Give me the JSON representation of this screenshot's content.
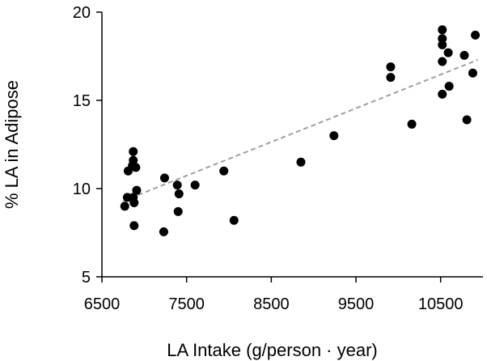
{
  "chart_data": {
    "type": "scatter",
    "title": "",
    "xlabel": "LA Intake (g/person · year)",
    "ylabel": "% LA in Adipose",
    "xlim": [
      6500,
      11000
    ],
    "ylim": [
      5,
      20
    ],
    "x_ticks": [
      6500,
      7500,
      8500,
      9500,
      10500
    ],
    "y_ticks": [
      5,
      10,
      15,
      20
    ],
    "x_tick_labels": [
      "6500",
      "7500",
      "8500",
      "9500",
      "10500"
    ],
    "y_tick_labels": [
      "5",
      "10",
      "15",
      "20"
    ],
    "grid": false,
    "legend": "none",
    "marker_color": "#000000",
    "trendline": {
      "style": "dashed",
      "color": "#a0a0a0",
      "from": [
        6750,
        9.3
      ],
      "to": [
        10940,
        17.3
      ]
    },
    "points": [
      {
        "x": 6770,
        "y": 9.0
      },
      {
        "x": 6800,
        "y": 9.5
      },
      {
        "x": 6810,
        "y": 11.0
      },
      {
        "x": 6860,
        "y": 11.3
      },
      {
        "x": 6870,
        "y": 12.1
      },
      {
        "x": 6870,
        "y": 11.6
      },
      {
        "x": 6870,
        "y": 9.5
      },
      {
        "x": 6880,
        "y": 7.9
      },
      {
        "x": 6880,
        "y": 9.2
      },
      {
        "x": 6900,
        "y": 11.2
      },
      {
        "x": 6910,
        "y": 9.9
      },
      {
        "x": 7230,
        "y": 7.55
      },
      {
        "x": 7240,
        "y": 10.6
      },
      {
        "x": 7390,
        "y": 10.2
      },
      {
        "x": 7400,
        "y": 8.7
      },
      {
        "x": 7410,
        "y": 9.7
      },
      {
        "x": 7600,
        "y": 10.2
      },
      {
        "x": 7940,
        "y": 11.0
      },
      {
        "x": 8060,
        "y": 8.2
      },
      {
        "x": 8850,
        "y": 11.5
      },
      {
        "x": 9240,
        "y": 13.0
      },
      {
        "x": 9910,
        "y": 16.9
      },
      {
        "x": 9910,
        "y": 16.3
      },
      {
        "x": 10160,
        "y": 13.65
      },
      {
        "x": 10520,
        "y": 19.0
      },
      {
        "x": 10520,
        "y": 18.5
      },
      {
        "x": 10520,
        "y": 18.15
      },
      {
        "x": 10520,
        "y": 17.2
      },
      {
        "x": 10520,
        "y": 15.35
      },
      {
        "x": 10590,
        "y": 17.7
      },
      {
        "x": 10600,
        "y": 15.8
      },
      {
        "x": 10780,
        "y": 17.55
      },
      {
        "x": 10810,
        "y": 13.9
      },
      {
        "x": 10880,
        "y": 16.55
      },
      {
        "x": 10910,
        "y": 18.7
      }
    ]
  }
}
